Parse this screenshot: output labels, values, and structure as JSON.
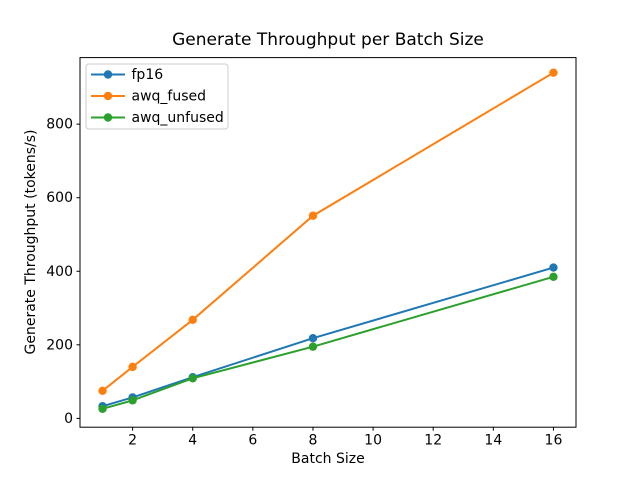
{
  "figure": {
    "background": "#ffffff",
    "spine_color": "#000000",
    "legend_border_color": "#cccccc"
  },
  "chart_data": {
    "type": "line",
    "title": "Generate Throughput per Batch Size",
    "xlabel": "Batch Size",
    "ylabel": "Generate Throughput (tokens/s)",
    "x": [
      1,
      2,
      4,
      8,
      16
    ],
    "series": [
      {
        "name": "fp16",
        "color": "#1f77b4",
        "values": [
          33,
          57,
          112,
          218,
          410
        ]
      },
      {
        "name": "awq_fused",
        "color": "#ff7f0e",
        "values": [
          75,
          140,
          268,
          551,
          940
        ]
      },
      {
        "name": "awq_unfused",
        "color": "#2ca02c",
        "values": [
          26,
          49,
          109,
          195,
          385
        ]
      }
    ],
    "marker": "o",
    "grid": false,
    "legend_position": "upper left",
    "xlim": [
      0.25,
      16.75
    ],
    "ylim": [
      -24,
      981
    ],
    "xticks": [
      2,
      4,
      6,
      8,
      10,
      12,
      14,
      16
    ],
    "yticks": [
      0,
      200,
      400,
      600,
      800
    ]
  }
}
